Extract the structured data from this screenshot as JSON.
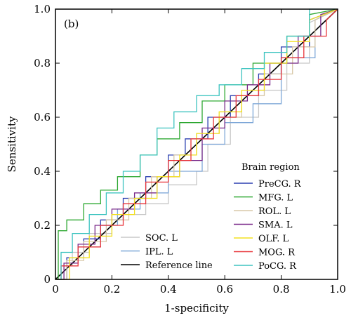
{
  "chart_data": {
    "type": "line",
    "panel_label": "(b)",
    "xlabel": "1-specificity",
    "ylabel": "Sensitivity",
    "xlim": [
      0,
      1
    ],
    "ylim": [
      0,
      1
    ],
    "xticks": [
      "0",
      "0.2",
      "0.4",
      "0.6",
      "0.8",
      "1.0"
    ],
    "yticks": [
      "0",
      "0.2",
      "0.4",
      "0.6",
      "0.8",
      "1.0"
    ],
    "xtick_values": [
      0,
      0.2,
      0.4,
      0.6,
      0.8,
      1.0
    ],
    "ytick_values": [
      0,
      0.2,
      0.4,
      0.6,
      0.8,
      1.0
    ],
    "grid": false,
    "legend_right_title": "Brain region",
    "series": [
      {
        "name": "SOC. L",
        "color": "#c8c8c8",
        "legend": "left",
        "x": [
          0,
          0.02,
          0.02,
          0.06,
          0.06,
          0.12,
          0.12,
          0.2,
          0.2,
          0.32,
          0.32,
          0.4,
          0.4,
          0.5,
          0.5,
          0.54,
          0.54,
          0.62,
          0.62,
          0.72,
          0.72,
          0.82,
          0.82,
          0.9,
          0.9,
          1.0
        ],
        "y": [
          0,
          0,
          0.05,
          0.05,
          0.1,
          0.1,
          0.17,
          0.17,
          0.24,
          0.24,
          0.28,
          0.28,
          0.35,
          0.35,
          0.4,
          0.4,
          0.5,
          0.5,
          0.6,
          0.6,
          0.7,
          0.7,
          0.8,
          0.8,
          0.95,
          1.0
        ]
      },
      {
        "name": "IPL. L",
        "color": "#7fa8d8",
        "legend": "left",
        "x": [
          0,
          0.04,
          0.04,
          0.08,
          0.08,
          0.16,
          0.16,
          0.22,
          0.22,
          0.3,
          0.3,
          0.4,
          0.4,
          0.52,
          0.52,
          0.6,
          0.6,
          0.7,
          0.7,
          0.8,
          0.8,
          0.92,
          0.92,
          1.0
        ],
        "y": [
          0,
          0,
          0.06,
          0.06,
          0.12,
          0.12,
          0.2,
          0.2,
          0.26,
          0.26,
          0.32,
          0.32,
          0.4,
          0.4,
          0.5,
          0.5,
          0.58,
          0.58,
          0.65,
          0.65,
          0.82,
          0.82,
          0.96,
          1.0
        ]
      },
      {
        "name": "Reference line",
        "color": "#000000",
        "legend": "left",
        "x": [
          0,
          1
        ],
        "y": [
          0,
          1
        ]
      },
      {
        "name": "PreCG. R",
        "color": "#2b3fb0",
        "legend": "right",
        "x": [
          0,
          0.04,
          0.04,
          0.1,
          0.1,
          0.16,
          0.16,
          0.24,
          0.24,
          0.32,
          0.32,
          0.4,
          0.4,
          0.46,
          0.46,
          0.54,
          0.54,
          0.62,
          0.62,
          0.72,
          0.72,
          0.8,
          0.8,
          0.9,
          0.9,
          1.0
        ],
        "y": [
          0,
          0,
          0.08,
          0.08,
          0.15,
          0.15,
          0.22,
          0.22,
          0.3,
          0.3,
          0.38,
          0.38,
          0.46,
          0.46,
          0.52,
          0.52,
          0.6,
          0.6,
          0.68,
          0.68,
          0.76,
          0.76,
          0.86,
          0.86,
          0.96,
          1.0
        ]
      },
      {
        "name": "MFG. L",
        "color": "#2ea832",
        "legend": "right",
        "x": [
          0,
          0.01,
          0.01,
          0.04,
          0.04,
          0.1,
          0.1,
          0.16,
          0.16,
          0.22,
          0.22,
          0.3,
          0.3,
          0.36,
          0.36,
          0.44,
          0.44,
          0.52,
          0.52,
          0.6,
          0.6,
          0.7,
          0.7,
          0.82,
          0.82,
          0.9,
          0.9,
          1.0
        ],
        "y": [
          0,
          0,
          0.18,
          0.18,
          0.22,
          0.22,
          0.28,
          0.28,
          0.33,
          0.33,
          0.38,
          0.38,
          0.46,
          0.46,
          0.52,
          0.52,
          0.58,
          0.58,
          0.66,
          0.66,
          0.72,
          0.72,
          0.8,
          0.8,
          0.9,
          0.9,
          0.98,
          1.0
        ]
      },
      {
        "name": "ROL. L",
        "color": "#d8c8a8",
        "legend": "right",
        "x": [
          0,
          0.04,
          0.04,
          0.1,
          0.1,
          0.18,
          0.18,
          0.26,
          0.26,
          0.34,
          0.34,
          0.42,
          0.42,
          0.5,
          0.5,
          0.58,
          0.58,
          0.66,
          0.66,
          0.74,
          0.74,
          0.84,
          0.84,
          0.92,
          0.92,
          1.0
        ],
        "y": [
          0,
          0,
          0.07,
          0.07,
          0.14,
          0.14,
          0.22,
          0.22,
          0.3,
          0.3,
          0.38,
          0.38,
          0.46,
          0.46,
          0.54,
          0.54,
          0.6,
          0.6,
          0.68,
          0.68,
          0.76,
          0.76,
          0.86,
          0.86,
          0.96,
          1.0
        ]
      },
      {
        "name": "SMA. L",
        "color": "#7a2a8a",
        "legend": "right",
        "x": [
          0,
          0.03,
          0.03,
          0.08,
          0.08,
          0.14,
          0.14,
          0.2,
          0.2,
          0.28,
          0.28,
          0.36,
          0.36,
          0.44,
          0.44,
          0.52,
          0.52,
          0.6,
          0.6,
          0.68,
          0.68,
          0.76,
          0.76,
          0.86,
          0.86,
          0.94,
          0.94,
          1.0
        ],
        "y": [
          0,
          0,
          0.06,
          0.06,
          0.13,
          0.13,
          0.2,
          0.2,
          0.26,
          0.26,
          0.32,
          0.32,
          0.38,
          0.38,
          0.44,
          0.44,
          0.56,
          0.56,
          0.66,
          0.66,
          0.72,
          0.72,
          0.8,
          0.8,
          0.9,
          0.9,
          0.98,
          1.0
        ]
      },
      {
        "name": "OLF. L",
        "color": "#f2e020",
        "legend": "right",
        "x": [
          0,
          0.05,
          0.05,
          0.12,
          0.12,
          0.2,
          0.2,
          0.28,
          0.28,
          0.36,
          0.36,
          0.44,
          0.44,
          0.5,
          0.5,
          0.58,
          0.58,
          0.66,
          0.66,
          0.74,
          0.74,
          0.82,
          0.82,
          0.9,
          0.9,
          1.0
        ],
        "y": [
          0,
          0,
          0.08,
          0.08,
          0.16,
          0.16,
          0.24,
          0.24,
          0.3,
          0.3,
          0.38,
          0.38,
          0.46,
          0.46,
          0.54,
          0.54,
          0.62,
          0.62,
          0.7,
          0.7,
          0.8,
          0.8,
          0.88,
          0.88,
          0.96,
          1.0
        ]
      },
      {
        "name": "MOG. R",
        "color": "#e8353a",
        "legend": "right",
        "x": [
          0,
          0.02,
          0.02,
          0.08,
          0.08,
          0.16,
          0.16,
          0.24,
          0.24,
          0.32,
          0.32,
          0.4,
          0.4,
          0.48,
          0.48,
          0.56,
          0.56,
          0.64,
          0.64,
          0.72,
          0.72,
          0.8,
          0.8,
          0.88,
          0.88,
          0.96,
          0.96,
          1.0
        ],
        "y": [
          0,
          0,
          0.05,
          0.05,
          0.12,
          0.12,
          0.2,
          0.2,
          0.28,
          0.28,
          0.36,
          0.36,
          0.44,
          0.44,
          0.52,
          0.52,
          0.6,
          0.6,
          0.68,
          0.68,
          0.74,
          0.74,
          0.82,
          0.82,
          0.9,
          0.9,
          0.96,
          1.0
        ]
      },
      {
        "name": "PoCG. R",
        "color": "#3ec4c0",
        "legend": "right",
        "x": [
          0,
          0.02,
          0.02,
          0.06,
          0.06,
          0.12,
          0.12,
          0.18,
          0.18,
          0.24,
          0.24,
          0.3,
          0.3,
          0.36,
          0.36,
          0.42,
          0.42,
          0.5,
          0.5,
          0.58,
          0.58,
          0.66,
          0.66,
          0.74,
          0.74,
          0.82,
          0.82,
          0.9,
          0.9,
          1.0
        ],
        "y": [
          0,
          0,
          0.1,
          0.1,
          0.17,
          0.17,
          0.24,
          0.24,
          0.32,
          0.32,
          0.4,
          0.4,
          0.46,
          0.46,
          0.56,
          0.56,
          0.62,
          0.62,
          0.68,
          0.68,
          0.72,
          0.72,
          0.78,
          0.78,
          0.84,
          0.84,
          0.9,
          0.9,
          1.0,
          1.0
        ]
      }
    ]
  }
}
